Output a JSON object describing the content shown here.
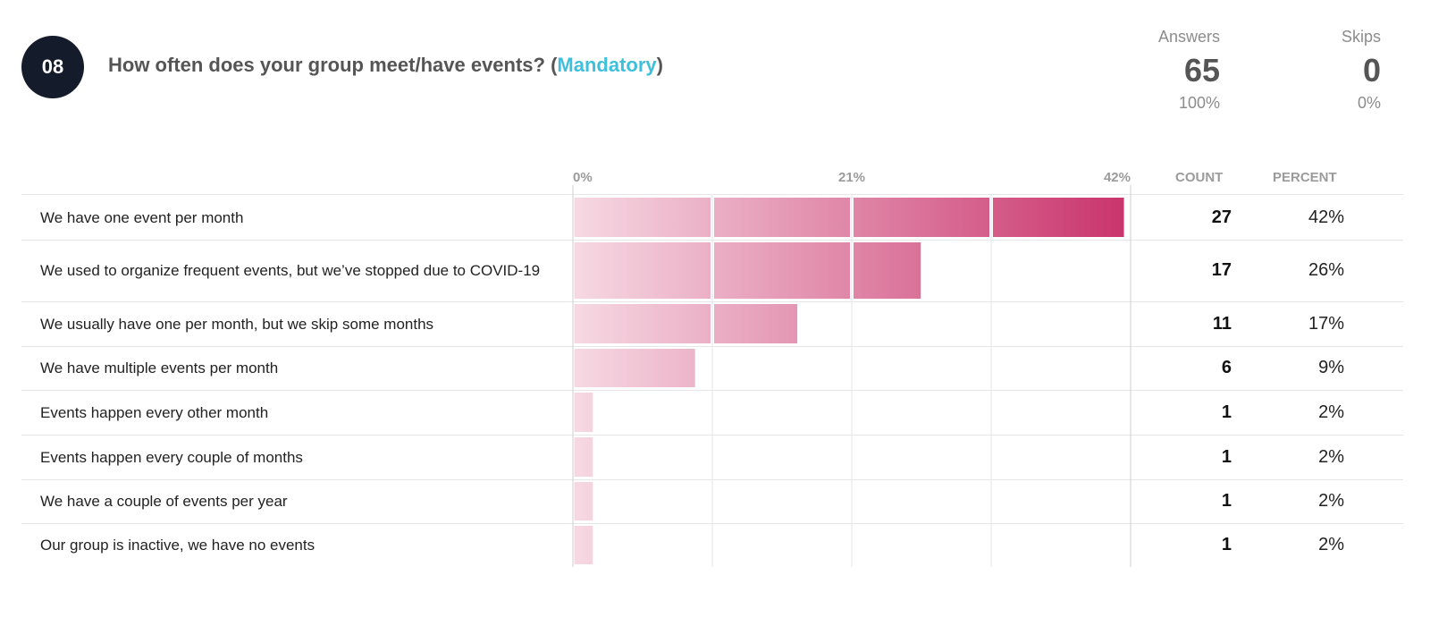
{
  "question": {
    "number": "08",
    "title": "How often does your group meet/have events? (",
    "mandatory": "Mandatory",
    "title_end": ")"
  },
  "summary": {
    "answers_label": "Answers",
    "answers_value": "65",
    "answers_percent": "100%",
    "skips_label": "Skips",
    "skips_value": "0",
    "skips_percent": "0%"
  },
  "table": {
    "count_header": "COUNT",
    "percent_header": "PERCENT"
  },
  "colors": {
    "bar_light": "#f6d9e3",
    "bar_dark": "#c9336b",
    "grid": "#e6e6e6",
    "accent": "#3ec0dd"
  },
  "chart_data": {
    "type": "bar",
    "orientation": "horizontal",
    "axis_ticks": [
      "0%",
      "21%",
      "42%"
    ],
    "xlim": [
      0,
      42
    ],
    "categories": [
      "We have one event per month",
      "We used to organize frequent events, but we’ve stopped due to COVID-19",
      "We usually have one per month, but we skip some months",
      "We have multiple events per month",
      "Events happen every other month",
      "Events happen every couple of months",
      "We have a couple of events per year",
      "Our group is inactive, we have no events"
    ],
    "counts": [
      27,
      17,
      11,
      6,
      1,
      1,
      1,
      1
    ],
    "percent_labels": [
      "42%",
      "26%",
      "17%",
      "9%",
      "2%",
      "2%",
      "2%",
      "2%"
    ],
    "values": [
      41.5,
      26.2,
      16.9,
      9.2,
      1.5,
      1.5,
      1.5,
      1.5
    ]
  }
}
